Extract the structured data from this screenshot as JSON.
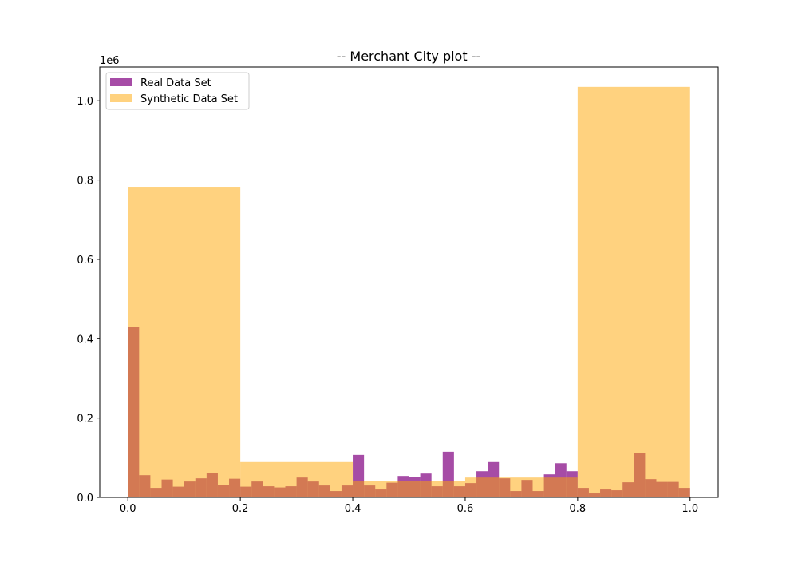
{
  "chart_data": {
    "type": "histogram",
    "title": "-- Merchant City plot --",
    "xlabel": "",
    "ylabel": "",
    "y_offset_label": "1e6",
    "xlim": [
      -0.05,
      1.05
    ],
    "ylim": [
      0,
      1.085
    ],
    "x_ticks": [
      0.0,
      0.2,
      0.4,
      0.6,
      0.8,
      1.0
    ],
    "x_tick_labels": [
      "0.0",
      "0.2",
      "0.4",
      "0.6",
      "0.8",
      "1.0"
    ],
    "y_ticks": [
      0.0,
      0.2,
      0.4,
      0.6,
      0.8,
      1.0
    ],
    "y_tick_labels": [
      "0.0",
      "0.2",
      "0.4",
      "0.6",
      "0.8",
      "1.0"
    ],
    "grid": false,
    "legend_position": "top-left",
    "series": [
      {
        "name": "Real Data Set",
        "color": "#800080",
        "opacity": 0.7,
        "bin_edges_start": 0.0,
        "bin_width": 0.02,
        "values": [
          0.43,
          0.056,
          0.024,
          0.045,
          0.027,
          0.04,
          0.048,
          0.062,
          0.032,
          0.047,
          0.027,
          0.04,
          0.028,
          0.025,
          0.028,
          0.05,
          0.04,
          0.03,
          0.016,
          0.03,
          0.107,
          0.03,
          0.02,
          0.037,
          0.054,
          0.052,
          0.06,
          0.028,
          0.115,
          0.028,
          0.036,
          0.066,
          0.089,
          0.048,
          0.016,
          0.044,
          0.016,
          0.058,
          0.086,
          0.066,
          0.024,
          0.01,
          0.02,
          0.018,
          0.038,
          0.112,
          0.046,
          0.039,
          0.039,
          0.024
        ]
      },
      {
        "name": "Synthetic Data Set",
        "color": "#FFA500",
        "opacity": 0.5,
        "bin_edges": [
          0.0,
          0.2,
          0.4,
          0.6,
          0.8,
          1.0
        ],
        "values": [
          0.783,
          0.089,
          0.042,
          0.05,
          1.035
        ]
      }
    ]
  }
}
